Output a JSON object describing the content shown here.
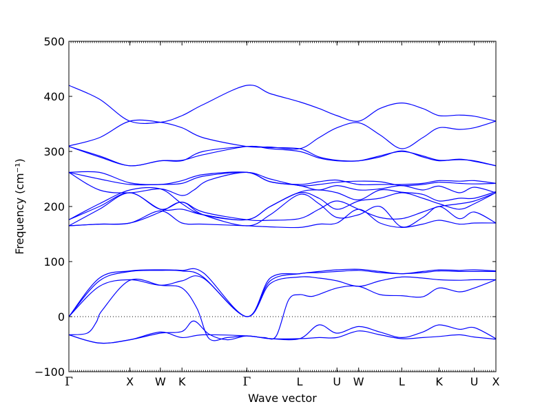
{
  "chart_data": {
    "type": "line",
    "title": "",
    "xlabel": "Wave vector",
    "ylabel": "Frequency (cm⁻¹)",
    "ylim": [
      -100,
      500
    ],
    "yticks": [
      -100,
      0,
      100,
      200,
      300,
      400,
      500
    ],
    "xlim": [
      0,
      7
    ],
    "xticks": [
      {
        "x": 0.0,
        "label": "Γ"
      },
      {
        "x": 1.0,
        "label": "X"
      },
      {
        "x": 1.5,
        "label": "W"
      },
      {
        "x": 1.854,
        "label": "K"
      },
      {
        "x": 2.917,
        "label": "Γ"
      },
      {
        "x": 3.783,
        "label": "L"
      },
      {
        "x": 4.395,
        "label": "U"
      },
      {
        "x": 4.75,
        "label": "W"
      },
      {
        "x": 5.457,
        "label": "L"
      },
      {
        "x": 6.07,
        "label": "K"
      },
      {
        "x": 6.646,
        "label": "U"
      },
      {
        "x": 7.0,
        "label": "X"
      }
    ],
    "grid": false,
    "zero_line": {
      "y": 0,
      "style": "dotted"
    },
    "line_color": "#0000ff",
    "series": [
      {
        "x": [
          0,
          0.5,
          1.0,
          1.5,
          1.854,
          2.2,
          2.917,
          3.3,
          3.783,
          4.1,
          4.395,
          4.75,
          5.1,
          5.457,
          5.8,
          6.07,
          6.4,
          6.646,
          7.0
        ],
        "y": [
          420,
          395,
          355,
          353,
          365,
          385,
          420,
          405,
          390,
          378,
          365,
          355,
          378,
          388,
          378,
          365,
          366,
          364,
          355
        ]
      },
      {
        "x": [
          0,
          0.5,
          1.0,
          1.5,
          1.854,
          2.2,
          2.917,
          3.3,
          3.783,
          4.1,
          4.395,
          4.75,
          5.1,
          5.457,
          5.8,
          6.07,
          6.4,
          6.646,
          7.0
        ],
        "y": [
          310,
          325,
          355,
          353,
          343,
          325,
          309,
          308,
          305,
          325,
          343,
          352,
          330,
          305,
          325,
          343,
          340,
          343,
          355
        ]
      },
      {
        "x": [
          0,
          0.5,
          1.0,
          1.5,
          1.854,
          2.2,
          2.917,
          3.3,
          3.783,
          4.1,
          4.395,
          4.75,
          5.1,
          5.457,
          5.8,
          6.07,
          6.4,
          6.646,
          7.0
        ],
        "y": [
          309,
          290,
          274,
          283,
          284,
          294,
          309,
          305,
          300,
          288,
          283,
          283,
          292,
          300,
          292,
          284,
          285,
          283,
          274
        ]
      },
      {
        "x": [
          0,
          0.5,
          1.0,
          1.5,
          1.854,
          2.2,
          2.917,
          3.3,
          3.783,
          4.1,
          4.395,
          4.75,
          5.1,
          5.457,
          5.8,
          6.07,
          6.4,
          6.646,
          7.0
        ],
        "y": [
          309,
          292,
          274,
          283,
          283,
          300,
          309,
          307,
          305,
          290,
          284,
          283,
          290,
          301,
          290,
          283,
          286,
          282,
          274
        ]
      },
      {
        "x": [
          0,
          0.5,
          1.0,
          1.5,
          1.854,
          2.2,
          2.917,
          3.3,
          3.783,
          4.1,
          4.395,
          4.75,
          5.1,
          5.457,
          5.8,
          6.07,
          6.4,
          6.646,
          7.0
        ],
        "y": [
          262,
          262,
          243,
          240,
          247,
          258,
          262,
          245,
          240,
          245,
          248,
          240,
          240,
          240,
          242,
          247,
          246,
          247,
          242
        ]
      },
      {
        "x": [
          0,
          0.5,
          1.0,
          1.5,
          1.854,
          2.2,
          2.917,
          3.3,
          3.783,
          4.1,
          4.395,
          4.75,
          5.1,
          5.457,
          5.8,
          6.07,
          6.4,
          6.646,
          7.0
        ],
        "y": [
          262,
          250,
          240,
          240,
          242,
          255,
          262,
          250,
          238,
          240,
          244,
          246,
          245,
          238,
          240,
          244,
          242,
          241,
          242
        ]
      },
      {
        "x": [
          0,
          0.5,
          1.0,
          1.5,
          1.854,
          2.05,
          2.3,
          2.917,
          3.3,
          3.783,
          4.1,
          4.395,
          4.75,
          5.1,
          5.457,
          5.8,
          6.07,
          6.4,
          6.646,
          7.0
        ],
        "y": [
          262,
          230,
          225,
          232,
          220,
          230,
          248,
          262,
          245,
          238,
          230,
          238,
          230,
          232,
          238,
          230,
          237,
          225,
          235,
          225
        ]
      },
      {
        "x": [
          0,
          0.5,
          1.0,
          1.5,
          1.854,
          2.2,
          2.917,
          3.3,
          3.783,
          4.1,
          4.395,
          4.75,
          5.1,
          5.457,
          5.8,
          6.07,
          6.4,
          6.646,
          7.0
        ],
        "y": [
          176,
          205,
          230,
          232,
          205,
          185,
          176,
          200,
          226,
          230,
          225,
          212,
          230,
          226,
          222,
          210,
          215,
          215,
          227
        ]
      },
      {
        "x": [
          0,
          0.5,
          1.0,
          1.5,
          1.854,
          2.2,
          2.917,
          3.3,
          3.783,
          4.1,
          4.395,
          4.75,
          5.1,
          5.457,
          5.8,
          6.07,
          6.4,
          6.646,
          7.0
        ],
        "y": [
          176,
          200,
          225,
          195,
          195,
          185,
          176,
          200,
          225,
          215,
          195,
          210,
          215,
          225,
          215,
          205,
          195,
          205,
          225
        ]
      },
      {
        "x": [
          0,
          0.5,
          1.0,
          1.5,
          1.854,
          2.2,
          2.917,
          3.3,
          3.783,
          4.1,
          4.395,
          4.75,
          5.1,
          5.457,
          5.8,
          6.07,
          6.4,
          6.646,
          7.0
        ],
        "y": [
          165,
          195,
          225,
          195,
          208,
          190,
          176,
          175,
          178,
          195,
          210,
          195,
          180,
          178,
          190,
          200,
          205,
          210,
          225
        ]
      },
      {
        "x": [
          0,
          0.5,
          1.0,
          1.5,
          1.854,
          2.2,
          2.917,
          3.3,
          3.783,
          4.1,
          4.395,
          4.75,
          5.1,
          5.457,
          5.8,
          6.07,
          6.4,
          6.646,
          7.0
        ],
        "y": [
          165,
          168,
          170,
          190,
          208,
          185,
          165,
          185,
          222,
          205,
          180,
          185,
          200,
          163,
          180,
          200,
          178,
          190,
          170
        ]
      },
      {
        "x": [
          0,
          0.5,
          1.0,
          1.5,
          1.854,
          2.2,
          2.917,
          3.3,
          3.783,
          4.1,
          4.395,
          4.75,
          5.1,
          5.457,
          5.8,
          6.07,
          6.4,
          6.646,
          7.0
        ],
        "y": [
          165,
          168,
          170,
          192,
          170,
          168,
          165,
          163,
          162,
          168,
          170,
          195,
          170,
          162,
          168,
          175,
          168,
          170,
          170
        ]
      },
      {
        "x": [
          0,
          0.5,
          1.0,
          1.5,
          1.854,
          2.2,
          2.917,
          3.3,
          3.783,
          4.1,
          4.395,
          4.75,
          5.1,
          5.457,
          5.8,
          6.07,
          6.4,
          6.646,
          7.0
        ],
        "y": [
          0,
          70,
          83,
          85,
          84,
          80,
          0,
          70,
          78,
          82,
          85,
          86,
          82,
          78,
          82,
          85,
          84,
          85,
          83
        ]
      },
      {
        "x": [
          0,
          0.5,
          1.0,
          1.5,
          1.854,
          2.2,
          2.917,
          3.3,
          3.783,
          4.1,
          4.395,
          4.75,
          5.1,
          5.457,
          5.8,
          6.07,
          6.4,
          6.646,
          7.0
        ],
        "y": [
          0,
          65,
          82,
          84,
          83,
          72,
          0,
          65,
          78,
          80,
          82,
          84,
          80,
          78,
          80,
          83,
          82,
          82,
          82
        ]
      },
      {
        "x": [
          0,
          0.5,
          1.0,
          1.5,
          1.854,
          2.2,
          2.917,
          3.3,
          3.783,
          4.1,
          4.395,
          4.75,
          5.1,
          5.457,
          5.8,
          6.07,
          6.4,
          6.646,
          7.0
        ],
        "y": [
          0,
          55,
          67,
          57,
          65,
          70,
          0,
          60,
          72,
          70,
          65,
          55,
          65,
          72,
          70,
          67,
          66,
          67,
          67
        ]
      },
      {
        "x": [
          0,
          0.3,
          0.45,
          0.55,
          1.0,
          1.5,
          1.854,
          2.1,
          2.3,
          2.6,
          2.917,
          3.2,
          3.4,
          3.6,
          3.783,
          4.0,
          4.395,
          4.75,
          5.1,
          5.457,
          5.8,
          6.07,
          6.4,
          6.646,
          7.0
        ],
        "y": [
          -33,
          -30,
          -10,
          12,
          66,
          57,
          52,
          15,
          -40,
          -38,
          -35,
          -38,
          -35,
          30,
          40,
          37,
          52,
          55,
          40,
          38,
          36,
          52,
          45,
          52,
          67
        ]
      },
      {
        "x": [
          0,
          0.5,
          1.0,
          1.5,
          1.854,
          2.05,
          2.3,
          2.6,
          2.917,
          3.3,
          3.783,
          4.1,
          4.395,
          4.75,
          5.1,
          5.457,
          5.8,
          6.07,
          6.4,
          6.646,
          7.0
        ],
        "y": [
          -33,
          -48,
          -42,
          -30,
          -27,
          -8,
          -32,
          -42,
          -35,
          -40,
          -40,
          -15,
          -30,
          -18,
          -28,
          -38,
          -28,
          -15,
          -23,
          -20,
          -40
        ]
      },
      {
        "x": [
          0,
          0.5,
          1.0,
          1.5,
          1.854,
          2.2,
          2.917,
          3.3,
          3.783,
          4.1,
          4.395,
          4.75,
          5.1,
          5.457,
          5.8,
          6.07,
          6.4,
          6.646,
          7.0
        ],
        "y": [
          -33,
          -48,
          -42,
          -28,
          -38,
          -33,
          -35,
          -40,
          -40,
          -38,
          -38,
          -26,
          -33,
          -40,
          -38,
          -36,
          -33,
          -37,
          -41
        ]
      }
    ]
  }
}
